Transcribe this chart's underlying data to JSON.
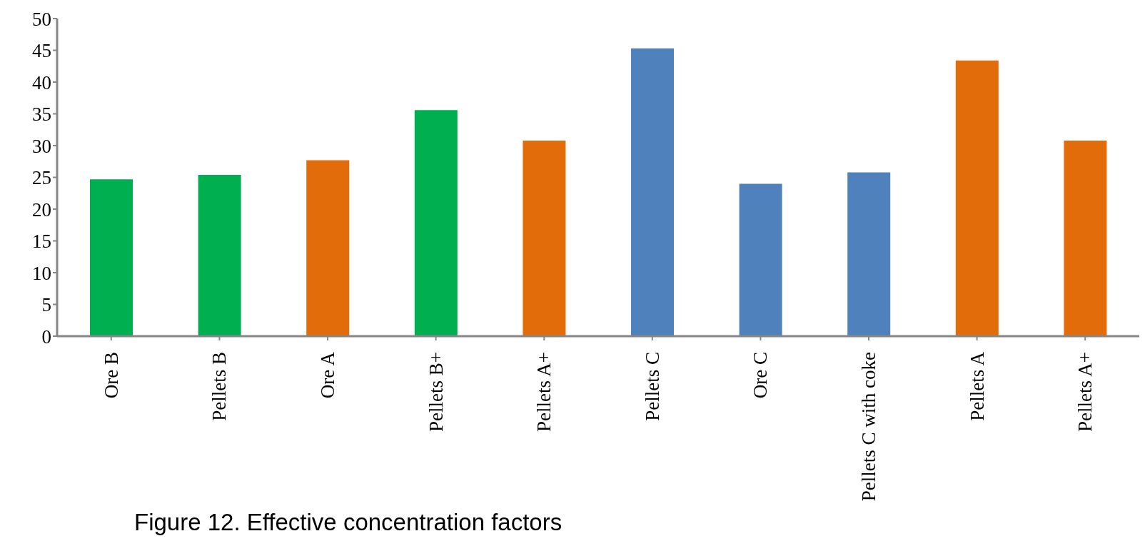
{
  "chart_data": {
    "type": "bar",
    "categories": [
      "Ore B",
      "Pellets B",
      "Ore A",
      "Pellets B+",
      "Pellets A+",
      "Pellets C",
      "Ore C",
      "Pellets C with coke",
      "Pellets A",
      "Pellets A+"
    ],
    "values": [
      24.7,
      25.4,
      27.7,
      35.6,
      30.8,
      45.3,
      24.0,
      25.8,
      43.4,
      30.8
    ],
    "colors": [
      "#00b050",
      "#00b050",
      "#e36c0a",
      "#00b050",
      "#e36c0a",
      "#4f81bd",
      "#4f81bd",
      "#4f81bd",
      "#e36c0a",
      "#e36c0a"
    ],
    "ylim": [
      0,
      50
    ],
    "yticks": [
      0,
      5,
      10,
      15,
      20,
      25,
      30,
      35,
      40,
      45,
      50
    ],
    "annotations": [
      "Figure 12. Effective concentration factors"
    ]
  }
}
